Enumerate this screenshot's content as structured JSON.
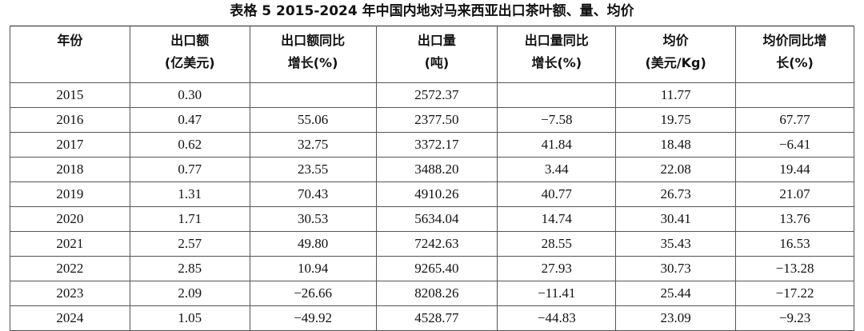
{
  "title": "表格 5 2015-2024 年中国内地对马来西亚出口茶叶额、量、均价",
  "table": {
    "header": [
      [
        "年份"
      ],
      [
        "出口额",
        "(亿美元)"
      ],
      [
        "出口额同比",
        "增长(%)"
      ],
      [
        "出口量",
        "(吨)"
      ],
      [
        "出口量同比",
        "增长(%)"
      ],
      [
        "均价",
        "(美元/Kg)"
      ],
      [
        "均价同比增",
        "长(%)"
      ]
    ],
    "rows": [
      [
        "2015",
        "0.30",
        null,
        "2572.37",
        null,
        "11.77",
        null
      ],
      [
        "2016",
        "0.47",
        "55.06",
        "2377.50",
        "−7.58",
        "19.75",
        "67.77"
      ],
      [
        "2017",
        "0.62",
        "32.75",
        "3372.17",
        "41.84",
        "18.48",
        "−6.41"
      ],
      [
        "2018",
        "0.77",
        "23.55",
        "3488.20",
        "3.44",
        "22.08",
        "19.44"
      ],
      [
        "2019",
        "1.31",
        "70.43",
        "4910.26",
        "40.77",
        "26.73",
        "21.07"
      ],
      [
        "2020",
        "1.71",
        "30.53",
        "5634.04",
        "14.74",
        "30.41",
        "13.76"
      ],
      [
        "2021",
        "2.57",
        "49.80",
        "7242.63",
        "28.55",
        "35.43",
        "16.53"
      ],
      [
        "2022",
        "2.85",
        "10.94",
        "9265.40",
        "27.93",
        "30.73",
        "−13.28"
      ],
      [
        "2023",
        "2.09",
        "−26.66",
        "8208.26",
        "−11.41",
        "25.44",
        "−17.22"
      ],
      [
        "2024",
        "1.05",
        "−49.92",
        "4528.77",
        "−44.83",
        "23.09",
        "−9.23"
      ]
    ]
  }
}
